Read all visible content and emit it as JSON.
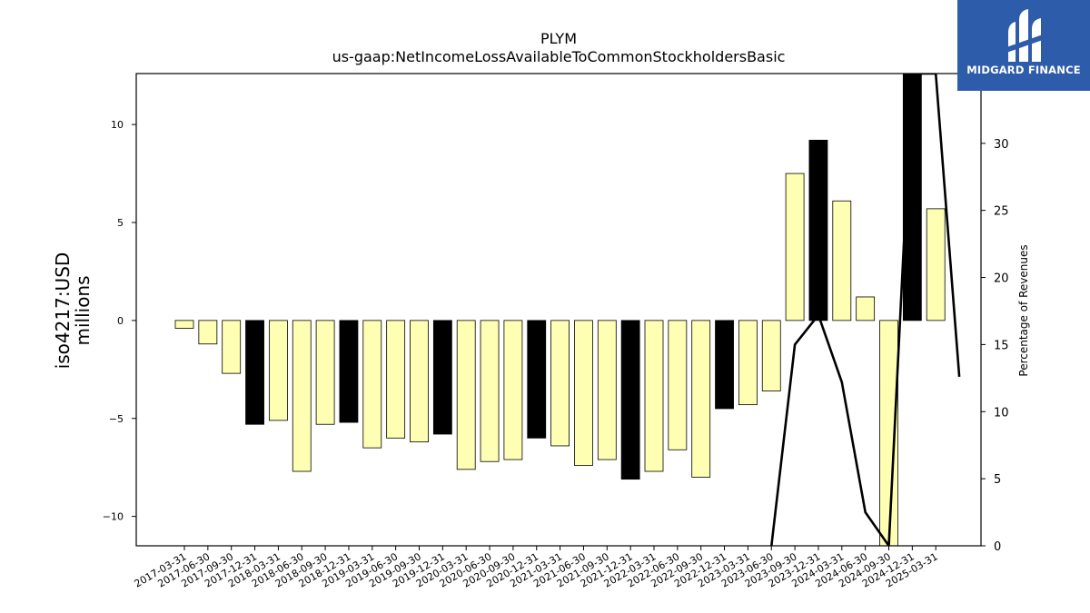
{
  "chart_data": {
    "type": "bar",
    "title": "PLYM",
    "subtitle": "us-gaap:NetIncomeLossAvailableToCommonStockholdersBasic",
    "ylabel_line1": "iso4217:USD",
    "ylabel_line2": "millions",
    "y2label": "Percentage of Revenues",
    "ylim": [
      -11.5,
      12.6
    ],
    "y2lim": [
      0,
      35.2
    ],
    "yticks": [
      -10,
      -5,
      0,
      5,
      10
    ],
    "y2ticks": [
      0,
      5,
      10,
      15,
      20,
      25,
      30
    ],
    "categories": [
      "2017-03-31",
      "2017-06-30",
      "2017-09-30",
      "2017-12-31",
      "2018-03-31",
      "2018-06-30",
      "2018-09-30",
      "2018-12-31",
      "2019-03-31",
      "2019-06-30",
      "2019-09-30",
      "2019-12-31",
      "2020-03-31",
      "2020-06-30",
      "2020-09-30",
      "2020-12-31",
      "2021-03-31",
      "2021-06-30",
      "2021-09-30",
      "2021-12-31",
      "2022-03-31",
      "2022-06-30",
      "2022-09-30",
      "2022-12-31",
      "2023-03-31",
      "2023-06-30",
      "2023-09-30",
      "2023-12-31",
      "2024-03-31",
      "2024-06-30",
      "2024-09-30",
      "2024-12-31",
      "2025-03-31"
    ],
    "values": [
      -0.4,
      -1.2,
      -2.7,
      -5.3,
      -5.1,
      -7.7,
      -5.3,
      -5.2,
      -6.5,
      -6.0,
      -6.2,
      -5.8,
      -7.6,
      -7.2,
      -7.1,
      -6.0,
      -6.4,
      -7.4,
      -7.1,
      -8.1,
      -7.7,
      -6.6,
      -8.0,
      -4.5,
      -4.3,
      -3.6,
      7.5,
      9.2,
      6.1,
      1.2,
      -11.5,
      12.6,
      5.7
    ],
    "quarter_types": [
      "Q",
      "Q",
      "Q",
      "FY",
      "Q",
      "Q",
      "Q",
      "FY",
      "Q",
      "Q",
      "Q",
      "FY",
      "Q",
      "Q",
      "Q",
      "FY",
      "Q",
      "Q",
      "Q",
      "FY",
      "Q",
      "Q",
      "Q",
      "FY",
      "Q",
      "Q",
      "Q",
      "FY",
      "Q",
      "Q",
      "Q",
      "FY",
      "Q"
    ],
    "line_series": {
      "name": "Percentage of Revenues",
      "x_start": "2023-06-30",
      "values": [
        0.0,
        15.0,
        17.2,
        12.2,
        2.5,
        0.0,
        35.2,
        35.2,
        12.6
      ]
    },
    "colors": {
      "quarter_bar": "#ffffb3",
      "fy_bar": "#000000",
      "line": "#000000",
      "logo_bg": "#2d5cab"
    }
  },
  "logo": {
    "text": "MIDGARD FINANCE",
    "icon": "midgard-finance-logo-icon"
  }
}
